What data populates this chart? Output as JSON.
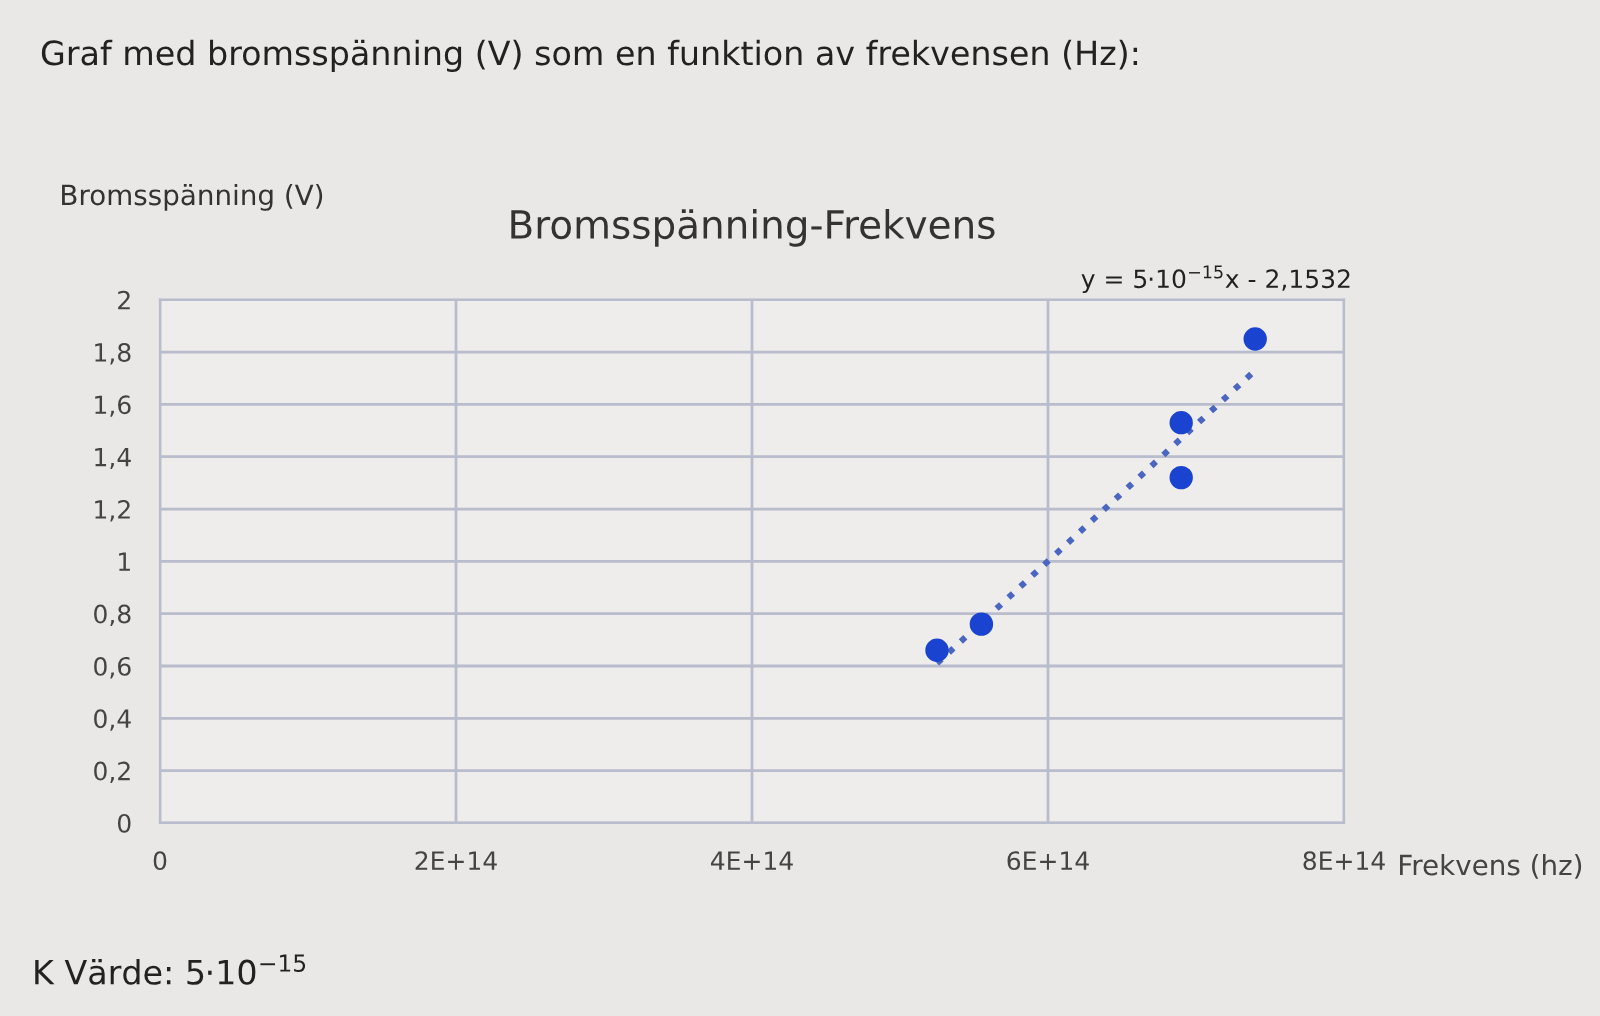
{
  "chart_data": {
    "type": "scatter",
    "title": "Bromsspänning-Frekvens",
    "xlabel": "Frekvens (hz)",
    "ylabel": "Bromsspänning (V)",
    "annotations": [
      "Graf med bromsspänning (V) som en funktion av frekvensen (Hz):",
      "y = 5·10$^{−15}$x - 2,1532",
      "K Värde: 5·10$^{−15}$"
    ],
    "series": [
      {
        "color": "#1a44d0",
        "marker": "circle",
        "x": [
          525000000000000.0,
          555000000000000.0,
          690000000000000.0,
          690000000000000.0,
          740000000000000.0
        ],
        "values": [
          0.66,
          0.76,
          1.53,
          1.32,
          1.85
        ]
      },
      {
        "type": "line",
        "color": "#4a66c0",
        "line_style": "dotted",
        "marker": "none",
        "x": [
          525000000000000.0,
          740000000000000.0
        ],
        "values": [
          0.61,
          1.73
        ]
      }
    ],
    "xlim": [
      0,
      800000000000000.0
    ],
    "xticks": [
      0,
      {
        "value": 200000000000000.0,
        "label": "2E+14"
      },
      {
        "value": 400000000000000.0,
        "label": "4E+14"
      },
      {
        "value": 600000000000000.0,
        "label": "6E+14"
      },
      {
        "value": 800000000000000.0,
        "label": "8E+14"
      }
    ],
    "ylim": [
      0,
      2
    ],
    "yticks": [
      0,
      {
        "value": 0.2,
        "label": "0,2"
      },
      {
        "value": 0.4,
        "label": "0,4"
      },
      {
        "value": 0.6,
        "label": "0,6"
      },
      {
        "value": 0.8,
        "label": "0,8"
      },
      1,
      {
        "value": 1.2,
        "label": "1,2"
      },
      {
        "value": 1.4,
        "label": "1,4"
      },
      {
        "value": 1.6,
        "label": "1,6"
      },
      {
        "value": 1.8,
        "label": "1,8"
      },
      2
    ],
    "grid": true
  }
}
